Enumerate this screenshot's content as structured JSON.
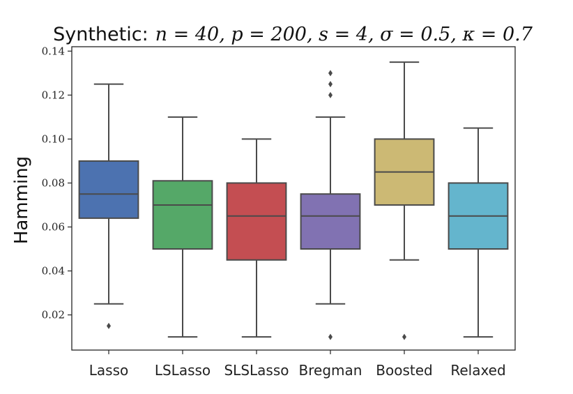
{
  "chart_data": {
    "type": "box",
    "title": "Synthetic:",
    "title_math": "n = 40, p = 200, s = 4, σ = 0.5, κ = 0.7",
    "xlabel": "",
    "ylabel": "Hamming",
    "ylim": [
      0.004,
      0.142
    ],
    "yticks": [
      0.02,
      0.04,
      0.06,
      0.08,
      0.1,
      0.12,
      0.14
    ],
    "ytick_labels": [
      "0.02",
      "0.04",
      "0.06",
      "0.08",
      "0.10",
      "0.12",
      "0.14"
    ],
    "grid": false,
    "legend": "none",
    "categories": [
      "Lasso",
      "LSLasso",
      "SLSLasso",
      "Bregman",
      "Boosted",
      "Relaxed"
    ],
    "boxes": [
      {
        "name": "Lasso",
        "color": "#4c72b0",
        "whisker_low": 0.025,
        "q1": 0.064,
        "median": 0.075,
        "q3": 0.09,
        "whisker_high": 0.125,
        "outliers": [
          0.015
        ]
      },
      {
        "name": "LSLasso",
        "color": "#55a868",
        "whisker_low": 0.01,
        "q1": 0.05,
        "median": 0.07,
        "q3": 0.081,
        "whisker_high": 0.11,
        "outliers": []
      },
      {
        "name": "SLSLasso",
        "color": "#c44e52",
        "whisker_low": 0.01,
        "q1": 0.045,
        "median": 0.065,
        "q3": 0.08,
        "whisker_high": 0.1,
        "outliers": []
      },
      {
        "name": "Bregman",
        "color": "#8172b2",
        "whisker_low": 0.025,
        "q1": 0.05,
        "median": 0.065,
        "q3": 0.075,
        "whisker_high": 0.11,
        "outliers": [
          0.01,
          0.12,
          0.125,
          0.13
        ]
      },
      {
        "name": "Boosted",
        "color": "#ccb974",
        "whisker_low": 0.045,
        "q1": 0.07,
        "median": 0.085,
        "q3": 0.1,
        "whisker_high": 0.135,
        "outliers": [
          0.01
        ]
      },
      {
        "name": "Relaxed",
        "color": "#64b5cd",
        "whisker_low": 0.01,
        "q1": 0.05,
        "median": 0.065,
        "q3": 0.08,
        "whisker_high": 0.105,
        "outliers": []
      }
    ]
  }
}
